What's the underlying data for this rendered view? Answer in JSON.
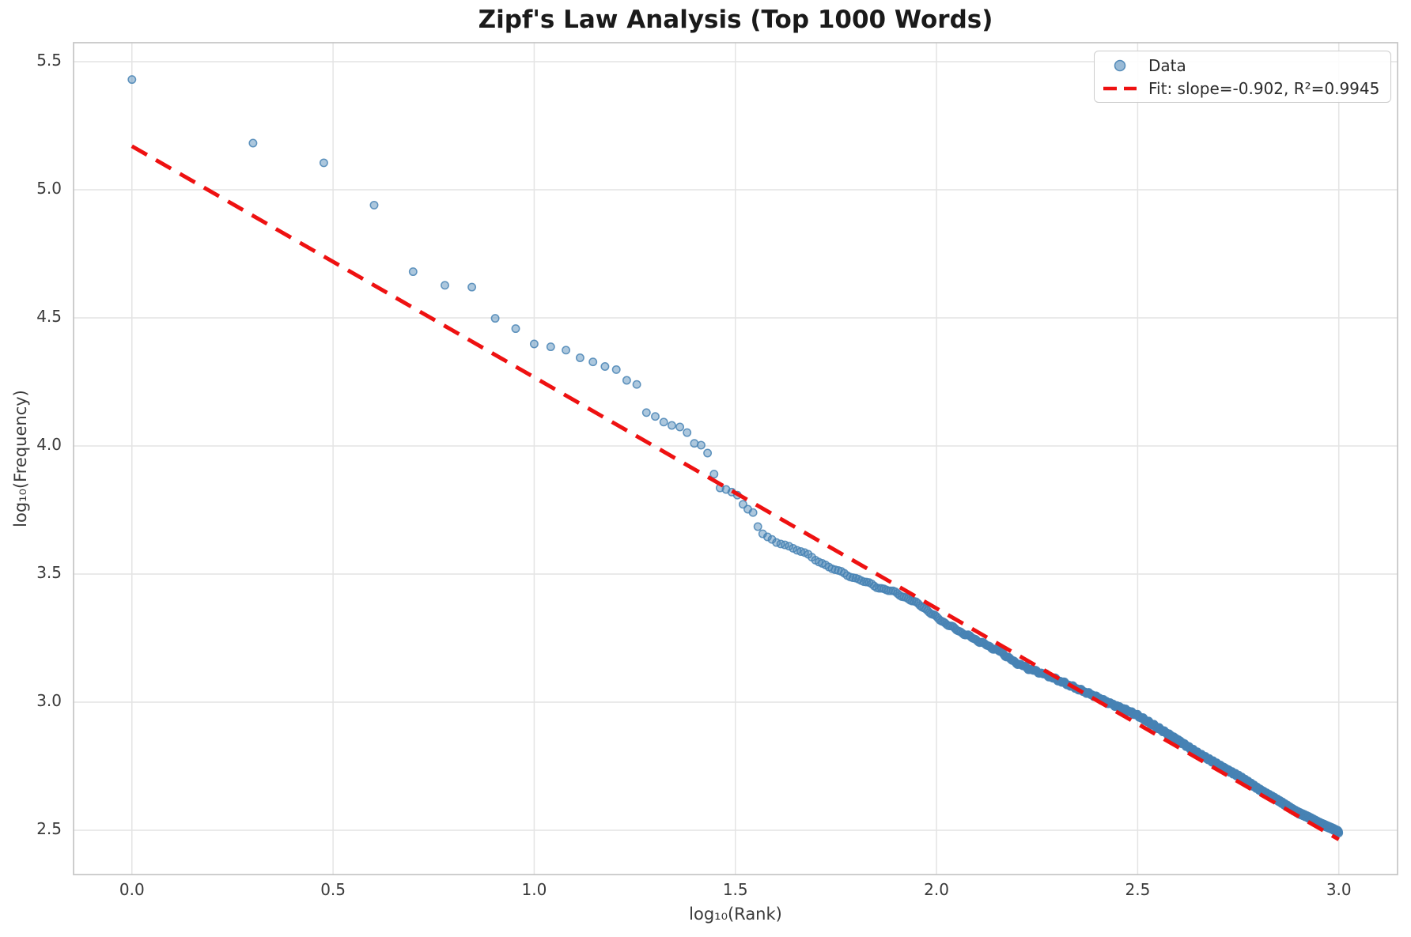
{
  "chart_data": {
    "type": "scatter",
    "title": "Zipf's Law Analysis (Top 1000 Words)",
    "xlabel": "log₁₀(Rank)",
    "ylabel": "log₁₀(Frequency)",
    "xlim": [
      -0.147,
      3.148
    ],
    "ylim": [
      2.324,
      5.577
    ],
    "grid": true,
    "xticks": {
      "values": [
        0.0,
        0.5,
        1.0,
        1.5,
        2.0,
        2.5,
        3.0
      ],
      "labels": [
        "0.0",
        "0.5",
        "1.0",
        "1.5",
        "2.0",
        "2.5",
        "3.0"
      ]
    },
    "yticks": {
      "values": [
        2.5,
        3.0,
        3.5,
        4.0,
        4.5,
        5.0,
        5.5
      ],
      "labels": [
        "2.5",
        "3.0",
        "3.5",
        "4.0",
        "4.5",
        "5.0",
        "5.5"
      ]
    },
    "legend": {
      "position": "upper right",
      "entries": [
        {
          "label": "Data",
          "sample": "circle-marker",
          "color": "#4682b4"
        },
        {
          "label": "Fit: slope=-0.902, R²=0.9945",
          "sample": "dashed-line",
          "color": "#ee1111"
        }
      ]
    },
    "series": [
      {
        "name": "Data",
        "kind": "scatter",
        "x_definition": "x = log10(rank), ranks 1..1000",
        "marker_color": "#4682b4",
        "marker_alpha": 0.45,
        "head_points": [
          [
            0.0,
            5.43
          ],
          [
            0.301,
            5.182
          ],
          [
            0.477,
            5.105
          ],
          [
            0.602,
            4.94
          ],
          [
            0.699,
            4.68
          ],
          [
            0.778,
            4.627
          ],
          [
            0.845,
            4.62
          ],
          [
            0.903,
            4.498
          ],
          [
            0.954,
            4.458
          ],
          [
            1.0,
            4.398
          ],
          [
            1.041,
            4.387
          ],
          [
            1.079,
            4.374
          ],
          [
            1.114,
            4.344
          ],
          [
            1.146,
            4.328
          ],
          [
            1.176,
            4.31
          ],
          [
            1.204,
            4.298
          ],
          [
            1.23,
            4.256
          ],
          [
            1.255,
            4.24
          ],
          [
            1.279,
            4.13
          ],
          [
            1.301,
            4.115
          ],
          [
            1.322,
            4.093
          ],
          [
            1.342,
            4.08
          ],
          [
            1.362,
            4.074
          ],
          [
            1.38,
            4.052
          ],
          [
            1.398,
            4.01
          ],
          [
            1.415,
            4.003
          ],
          [
            1.431,
            3.972
          ],
          [
            1.447,
            3.89
          ],
          [
            1.462,
            3.836
          ],
          [
            1.477,
            3.83
          ],
          [
            1.491,
            3.82
          ],
          [
            1.505,
            3.808
          ],
          [
            1.519,
            3.772
          ],
          [
            1.531,
            3.753
          ],
          [
            1.544,
            3.74
          ],
          [
            1.556,
            3.685
          ],
          [
            1.568,
            3.657
          ],
          [
            1.58,
            3.645
          ],
          [
            1.591,
            3.635
          ]
        ],
        "tail_band": {
          "rank_start": 40,
          "rank_end": 1000,
          "jitter": 0.005,
          "anchors": [
            [
              1.602,
              3.628
            ],
            [
              1.64,
              3.602
            ],
            [
              1.68,
              3.575
            ],
            [
              1.71,
              3.549
            ],
            [
              1.73,
              3.528
            ],
            [
              1.77,
              3.502
            ],
            [
              1.81,
              3.477
            ],
            [
              1.85,
              3.451
            ],
            [
              1.89,
              3.432
            ],
            [
              1.93,
              3.404
            ],
            [
              1.97,
              3.368
            ],
            [
              2.0,
              3.33
            ],
            [
              2.05,
              3.282
            ],
            [
              2.09,
              3.25
            ],
            [
              2.13,
              3.218
            ],
            [
              2.16,
              3.196
            ],
            [
              2.19,
              3.16
            ],
            [
              2.23,
              3.13
            ],
            [
              2.27,
              3.108
            ],
            [
              2.31,
              3.08
            ],
            [
              2.35,
              3.052
            ],
            [
              2.39,
              3.026
            ],
            [
              2.43,
              2.996
            ],
            [
              2.47,
              2.97
            ],
            [
              2.5,
              2.948
            ],
            [
              2.55,
              2.9
            ],
            [
              2.6,
              2.852
            ],
            [
              2.65,
              2.8
            ],
            [
              2.7,
              2.756
            ],
            [
              2.75,
              2.712
            ],
            [
              2.8,
              2.662
            ],
            [
              2.85,
              2.615
            ],
            [
              2.9,
              2.568
            ],
            [
              2.94,
              2.538
            ],
            [
              2.97,
              2.515
            ],
            [
              3.0,
              2.494
            ]
          ]
        }
      },
      {
        "name": "Fit",
        "kind": "line",
        "style": "dashed",
        "color": "#ee1111",
        "slope": -0.902,
        "intercept": 5.17,
        "r_squared": 0.9945,
        "x_range": [
          0.0,
          3.0
        ]
      }
    ]
  },
  "colors": {
    "background": "#ffffff",
    "grid": "#e4e4e4",
    "spine": "#c8c8c8",
    "title_text": "#1a1a1a",
    "tick_text": "#3a3a3a",
    "legend_border": "#cccccc"
  }
}
